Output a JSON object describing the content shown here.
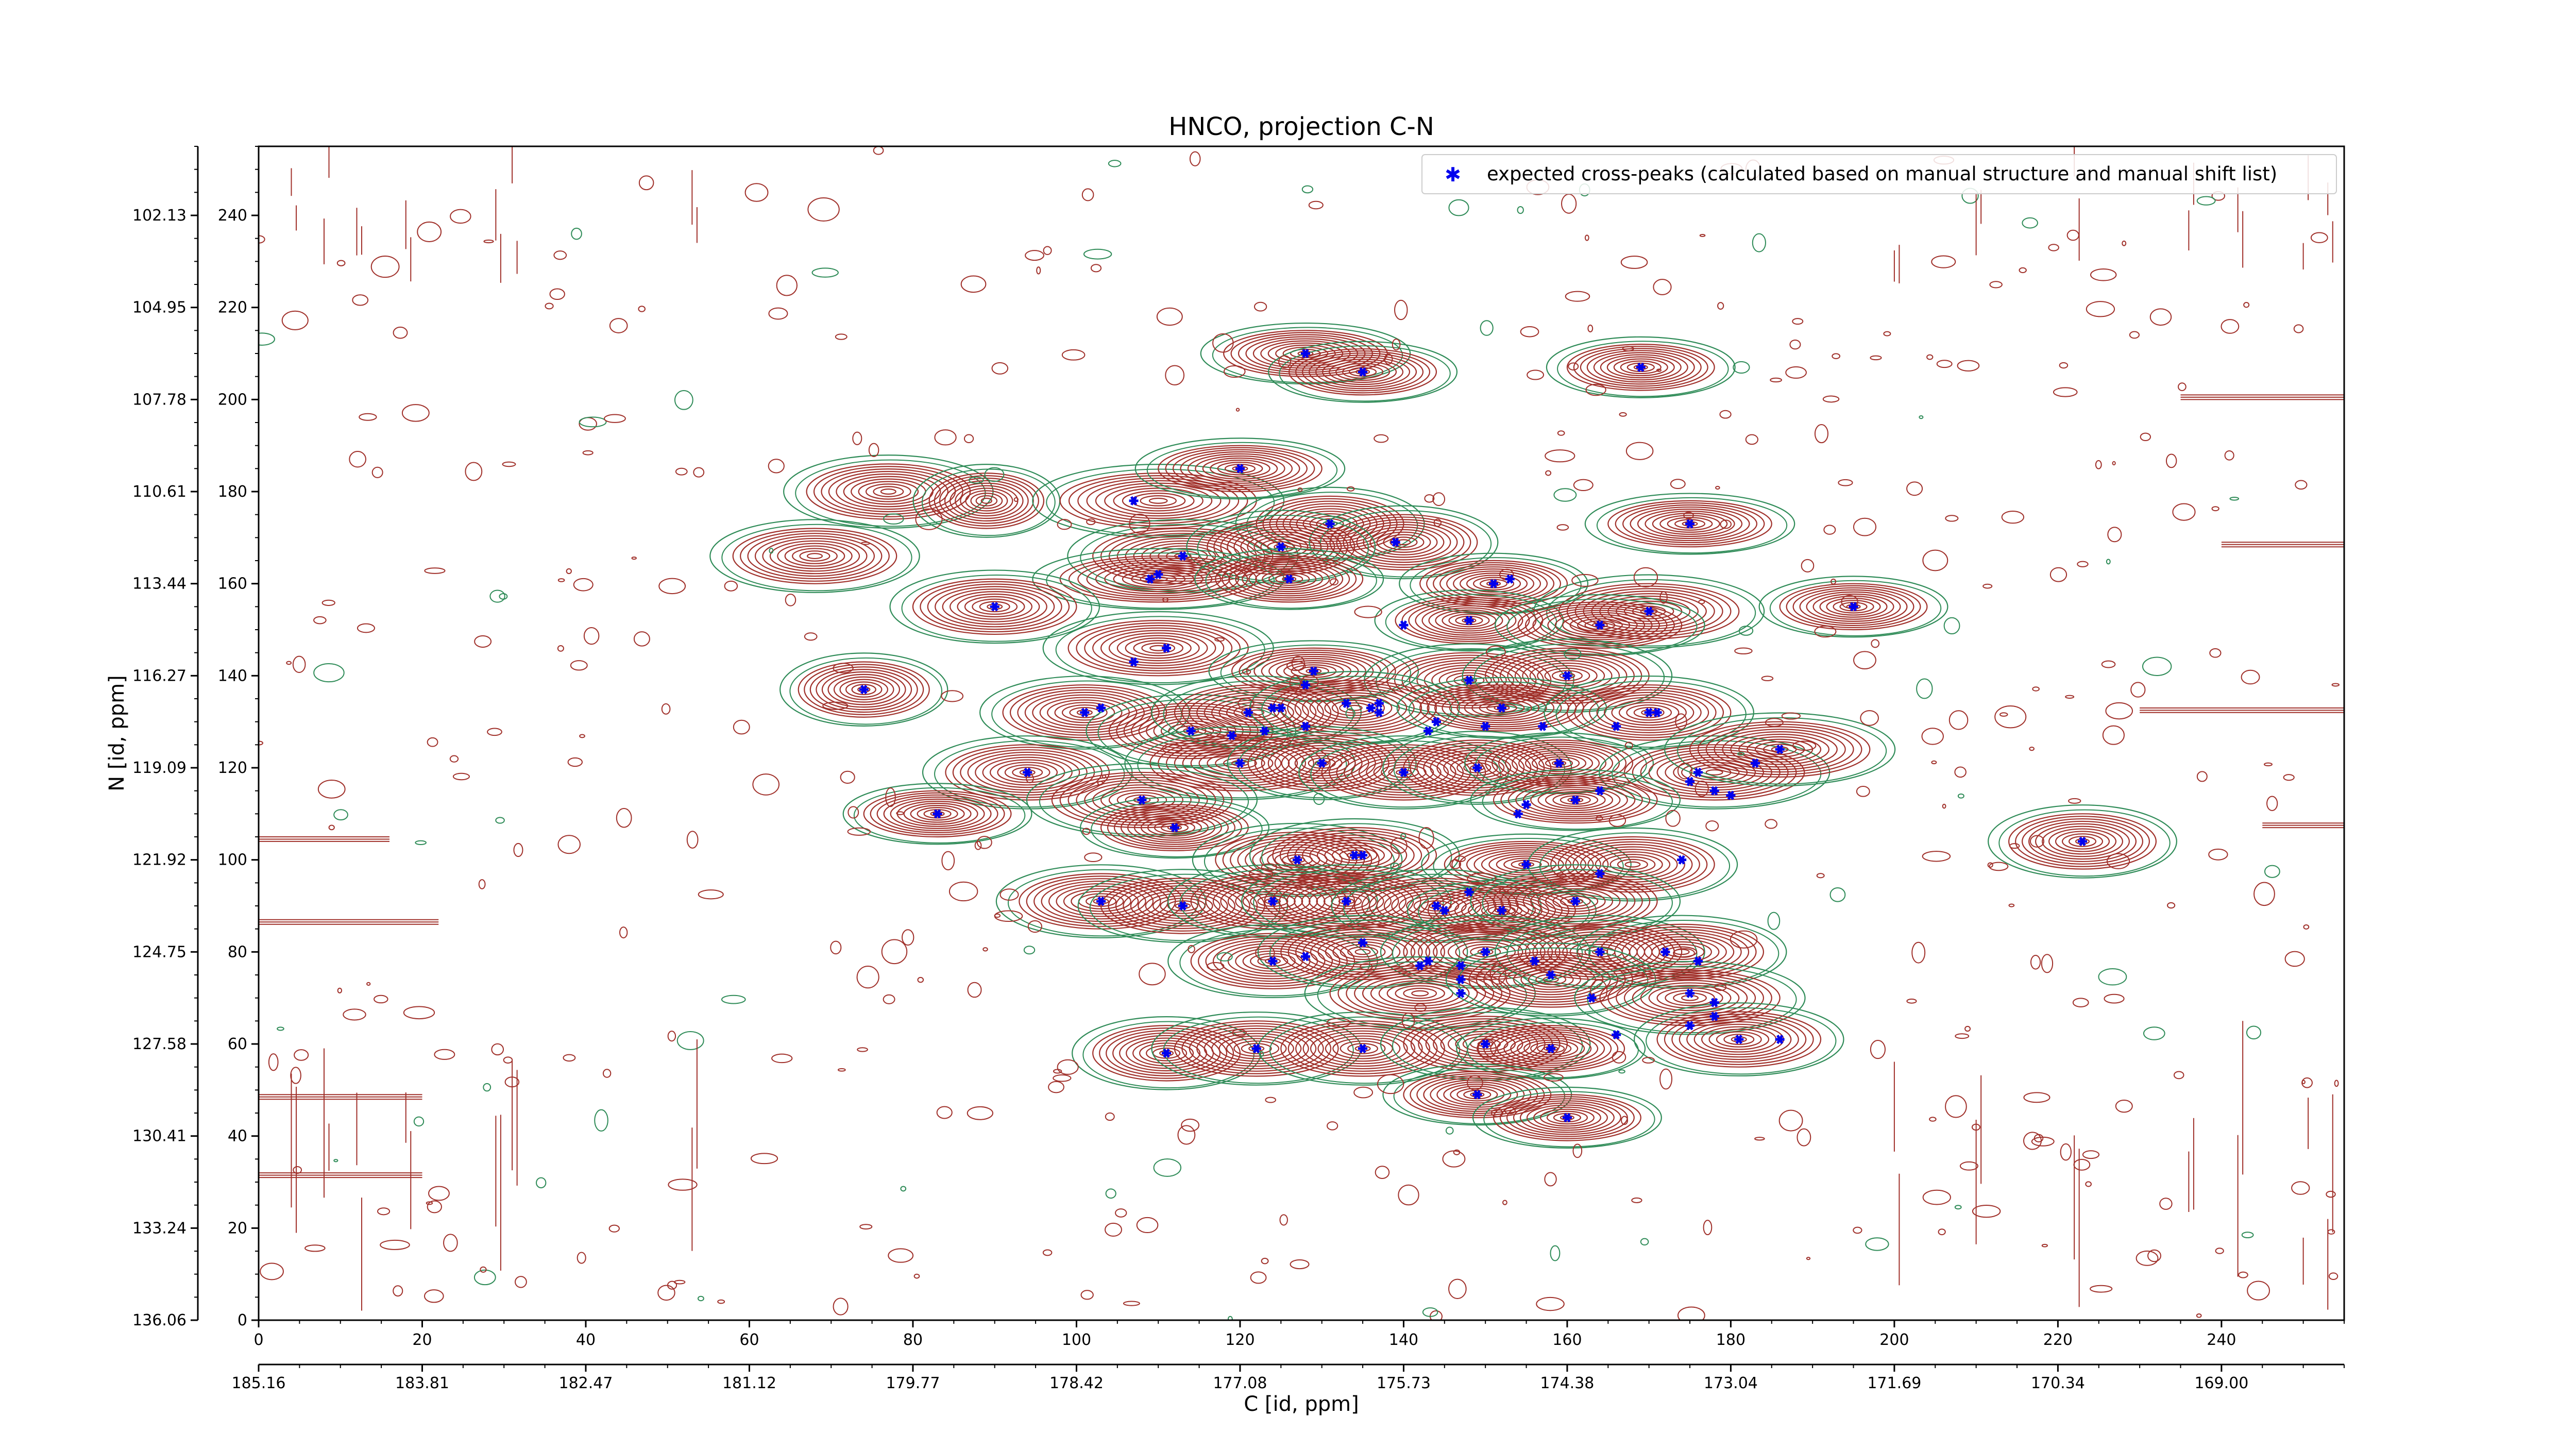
{
  "chart_data": {
    "type": "contour",
    "title": "HNCO, projection C-N",
    "xlabel": "C [id, ppm]",
    "ylabel": "N [id, ppm]",
    "xlim": [
      0,
      255
    ],
    "ylim": [
      0,
      255
    ],
    "x_ticks": [
      0,
      20,
      40,
      60,
      80,
      100,
      120,
      140,
      160,
      180,
      200,
      220,
      240
    ],
    "y_ticks": [
      0,
      20,
      40,
      60,
      80,
      100,
      120,
      140,
      160,
      180,
      200,
      220,
      240
    ],
    "x_ppm_labels": [
      "185.16",
      "183.81",
      "182.47",
      "181.12",
      "179.77",
      "178.42",
      "177.08",
      "175.73",
      "174.38",
      "173.04",
      "171.69",
      "170.34",
      "169.00"
    ],
    "y_ppm_labels": [
      "136.06",
      "133.24",
      "130.41",
      "127.58",
      "124.75",
      "121.92",
      "119.09",
      "116.27",
      "113.44",
      "110.61",
      "107.78",
      "104.95",
      "102.13"
    ],
    "legend": {
      "label": "expected cross-peaks (calculated based on manual structure and manual shift list)",
      "position": "upper-right"
    },
    "colors": {
      "positive_contours": "#a0302a",
      "negative_contours": "#2e8b57",
      "peaks": "#0000ee"
    },
    "series": [
      {
        "name": "expected cross-peaks (calculated based on manual structure and manual shift list)",
        "marker": "star",
        "points": [
          [
            128,
            210
          ],
          [
            135,
            206
          ],
          [
            169,
            207
          ],
          [
            120,
            185
          ],
          [
            107,
            178
          ],
          [
            131,
            173
          ],
          [
            175,
            173
          ],
          [
            113,
            166
          ],
          [
            125,
            168
          ],
          [
            139,
            169
          ],
          [
            109,
            161
          ],
          [
            110,
            162
          ],
          [
            126,
            161
          ],
          [
            151,
            160
          ],
          [
            153,
            161
          ],
          [
            90,
            155
          ],
          [
            170,
            154
          ],
          [
            195,
            155
          ],
          [
            148,
            152
          ],
          [
            164,
            151
          ],
          [
            140,
            151
          ],
          [
            74,
            137
          ],
          [
            111,
            146
          ],
          [
            107,
            143
          ],
          [
            129,
            141
          ],
          [
            148,
            139
          ],
          [
            160,
            140
          ],
          [
            101,
            132
          ],
          [
            103,
            133
          ],
          [
            121,
            132
          ],
          [
            124,
            133
          ],
          [
            125,
            133
          ],
          [
            133,
            134
          ],
          [
            136,
            133
          ],
          [
            137,
            132
          ],
          [
            152,
            133
          ],
          [
            170,
            132
          ],
          [
            128,
            138
          ],
          [
            137,
            134
          ],
          [
            144,
            130
          ],
          [
            171,
            132
          ],
          [
            114,
            128
          ],
          [
            119,
            127
          ],
          [
            123,
            128
          ],
          [
            128,
            129
          ],
          [
            150,
            129
          ],
          [
            157,
            129
          ],
          [
            166,
            129
          ],
          [
            143,
            128
          ],
          [
            94,
            119
          ],
          [
            120,
            121
          ],
          [
            130,
            121
          ],
          [
            140,
            119
          ],
          [
            149,
            120
          ],
          [
            159,
            121
          ],
          [
            176,
            119
          ],
          [
            183,
            121
          ],
          [
            186,
            124
          ],
          [
            175,
            117
          ],
          [
            108,
            113
          ],
          [
            161,
            113
          ],
          [
            164,
            115
          ],
          [
            178,
            115
          ],
          [
            180,
            114
          ],
          [
            83,
            110
          ],
          [
            112,
            107
          ],
          [
            154,
            110
          ],
          [
            155,
            112
          ],
          [
            127,
            100
          ],
          [
            134,
            101
          ],
          [
            135,
            101
          ],
          [
            155,
            99
          ],
          [
            164,
            97
          ],
          [
            174,
            100
          ],
          [
            223,
            104
          ],
          [
            103,
            91
          ],
          [
            113,
            90
          ],
          [
            124,
            91
          ],
          [
            133,
            91
          ],
          [
            144,
            90
          ],
          [
            152,
            89
          ],
          [
            161,
            91
          ],
          [
            145,
            89
          ],
          [
            148,
            93
          ],
          [
            124,
            78
          ],
          [
            128,
            79
          ],
          [
            135,
            82
          ],
          [
            150,
            80
          ],
          [
            156,
            78
          ],
          [
            164,
            80
          ],
          [
            172,
            80
          ],
          [
            176,
            78
          ],
          [
            142,
            77
          ],
          [
            143,
            78
          ],
          [
            147,
            77
          ],
          [
            147,
            74
          ],
          [
            147,
            71
          ],
          [
            158,
            75
          ],
          [
            163,
            70
          ],
          [
            175,
            71
          ],
          [
            178,
            69
          ],
          [
            122,
            59
          ],
          [
            111,
            58
          ],
          [
            135,
            59
          ],
          [
            150,
            60
          ],
          [
            158,
            59
          ],
          [
            166,
            62
          ],
          [
            175,
            64
          ],
          [
            178,
            66
          ],
          [
            181,
            61
          ],
          [
            186,
            61
          ],
          [
            149,
            49
          ],
          [
            160,
            44
          ]
        ]
      }
    ],
    "contour_peaks": [
      [
        128,
        210,
        10,
        5
      ],
      [
        135,
        206,
        9,
        5
      ],
      [
        169,
        207,
        9,
        5
      ],
      [
        77,
        180,
        10,
        6
      ],
      [
        89,
        178,
        7,
        6
      ],
      [
        68,
        166,
        10,
        6
      ],
      [
        110,
        178,
        12,
        6
      ],
      [
        120,
        185,
        10,
        5
      ],
      [
        131,
        173,
        9,
        6
      ],
      [
        140,
        169,
        9,
        6
      ],
      [
        175,
        173,
        10,
        5
      ],
      [
        113,
        166,
        11,
        6
      ],
      [
        125,
        168,
        9,
        6
      ],
      [
        110,
        161,
        12,
        5
      ],
      [
        126,
        161,
        9,
        5
      ],
      [
        90,
        155,
        10,
        6
      ],
      [
        151,
        160,
        9,
        5
      ],
      [
        170,
        154,
        11,
        6
      ],
      [
        195,
        155,
        9,
        5
      ],
      [
        148,
        152,
        9,
        5
      ],
      [
        164,
        151,
        10,
        5
      ],
      [
        74,
        137,
        8,
        6
      ],
      [
        110,
        146,
        11,
        6
      ],
      [
        129,
        141,
        10,
        5
      ],
      [
        148,
        139,
        10,
        6
      ],
      [
        160,
        140,
        10,
        6
      ],
      [
        101,
        132,
        10,
        6
      ],
      [
        114,
        128,
        10,
        6
      ],
      [
        122,
        132,
        10,
        6
      ],
      [
        134,
        133,
        10,
        6
      ],
      [
        152,
        133,
        10,
        5
      ],
      [
        170,
        132,
        10,
        6
      ],
      [
        94,
        119,
        10,
        6
      ],
      [
        120,
        121,
        11,
        6
      ],
      [
        130,
        121,
        9,
        6
      ],
      [
        140,
        119,
        10,
        6
      ],
      [
        149,
        120,
        9,
        6
      ],
      [
        159,
        121,
        9,
        5
      ],
      [
        178,
        119,
        11,
        6
      ],
      [
        186,
        124,
        11,
        6
      ],
      [
        108,
        113,
        11,
        6
      ],
      [
        161,
        113,
        10,
        5
      ],
      [
        83,
        110,
        9,
        5
      ],
      [
        112,
        107,
        9,
        5
      ],
      [
        127,
        100,
        10,
        6
      ],
      [
        134,
        101,
        10,
        6
      ],
      [
        155,
        99,
        10,
        5
      ],
      [
        168,
        99,
        10,
        6
      ],
      [
        223,
        104,
        9,
        6
      ],
      [
        103,
        91,
        10,
        6
      ],
      [
        113,
        90,
        10,
        6
      ],
      [
        124,
        91,
        10,
        6
      ],
      [
        133,
        91,
        10,
        6
      ],
      [
        144,
        90,
        10,
        6
      ],
      [
        152,
        89,
        9,
        5
      ],
      [
        161,
        91,
        10,
        6
      ],
      [
        124,
        78,
        10,
        6
      ],
      [
        135,
        80,
        10,
        6
      ],
      [
        150,
        80,
        10,
        6
      ],
      [
        164,
        80,
        10,
        6
      ],
      [
        174,
        80,
        10,
        6
      ],
      [
        142,
        71,
        11,
        6
      ],
      [
        158,
        74,
        10,
        6
      ],
      [
        175,
        70,
        11,
        6
      ],
      [
        111,
        58,
        9,
        6
      ],
      [
        122,
        59,
        10,
        6
      ],
      [
        135,
        59,
        10,
        6
      ],
      [
        150,
        60,
        10,
        6
      ],
      [
        158,
        59,
        9,
        5
      ],
      [
        181,
        61,
        10,
        6
      ],
      [
        149,
        49,
        9,
        5
      ],
      [
        160,
        44,
        9,
        5
      ]
    ]
  }
}
